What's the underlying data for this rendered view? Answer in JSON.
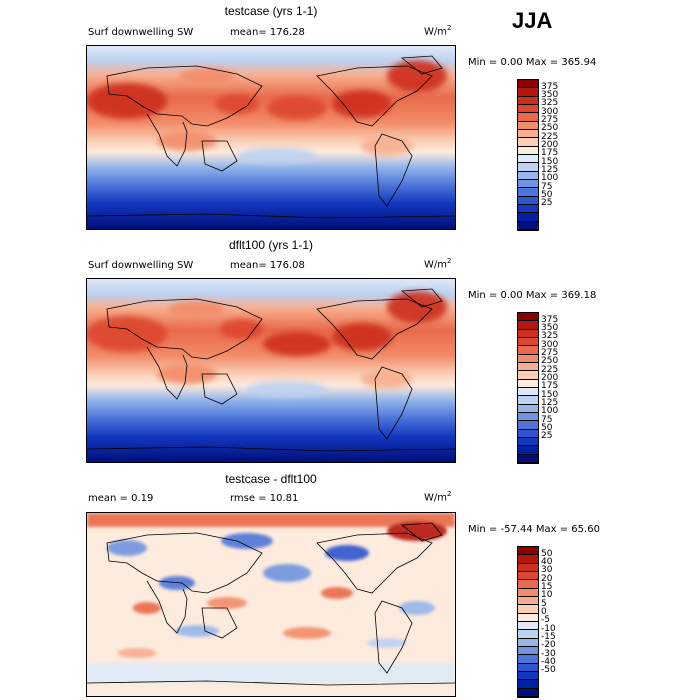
{
  "season": "JJA",
  "panels": [
    {
      "title": "testcase (yrs 1-1)",
      "variable": "Surf downwelling SW",
      "stat": "mean= 176.28",
      "units": "W/m",
      "units_sup": "2",
      "minmax": "Min =    0.00 Max = 365.94",
      "colorbar": {
        "labels": [
          "375",
          "350",
          "325",
          "300",
          "275",
          "250",
          "225",
          "200",
          "175",
          "150",
          "125",
          "100",
          "75",
          "50",
          "25"
        ],
        "colors": [
          "#8b0000",
          "#b5170e",
          "#cd2e1d",
          "#dd462f",
          "#e86a4a",
          "#f28c69",
          "#f7ae8f",
          "#fbcfb6",
          "#fdebdd",
          "#dfe9f7",
          "#bcd2f1",
          "#95b6eb",
          "#6e95e1",
          "#4d75d9",
          "#2d55cf",
          "#1337bf",
          "#0020a3",
          "#000f7a"
        ]
      }
    },
    {
      "title": "dflt100 (yrs 1-1)",
      "variable": "Surf downwelling SW",
      "stat": "mean= 176.08",
      "units": "W/m",
      "units_sup": "2",
      "minmax": "Min =    0.00 Max = 369.18",
      "colorbar": {
        "labels": [
          "375",
          "350",
          "325",
          "300",
          "275",
          "250",
          "225",
          "200",
          "175",
          "150",
          "125",
          "100",
          "75",
          "50",
          "25"
        ],
        "colors": [
          "#8b0000",
          "#b5170e",
          "#cd2e1d",
          "#dd462f",
          "#e86a4a",
          "#f28c69",
          "#f7ae8f",
          "#fbcfb6",
          "#fdebdd",
          "#dfe9f7",
          "#bcd2f1",
          "#95b6eb",
          "#6e95e1",
          "#4d75d9",
          "#2d55cf",
          "#1337bf",
          "#0020a3",
          "#000f7a"
        ]
      }
    },
    {
      "title": "testcase - dflt100",
      "stat_mean": "mean =    0.19",
      "stat_rmse": "rmse =   10.81",
      "units": "W/m",
      "units_sup": "2",
      "minmax": "Min = -57.44 Max =  65.60",
      "colorbar": {
        "labels": [
          "50",
          "40",
          "30",
          "20",
          "15",
          "10",
          "5",
          "0",
          "-5",
          "-10",
          "-15",
          "-20",
          "-30",
          "-40",
          "-50"
        ],
        "colors": [
          "#8b0000",
          "#b5170e",
          "#cd2e1d",
          "#dd462f",
          "#e86a4a",
          "#f28c69",
          "#f7ae8f",
          "#fbcfb6",
          "#fdebdd",
          "#dfe9f7",
          "#bcd2f1",
          "#95b6eb",
          "#6e95e1",
          "#4d75d9",
          "#2d55cf",
          "#1337bf",
          "#0020a3",
          "#000f7a"
        ]
      }
    }
  ]
}
